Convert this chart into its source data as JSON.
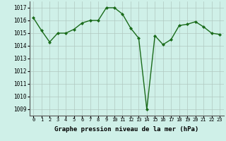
{
  "x": [
    0,
    1,
    2,
    3,
    4,
    5,
    6,
    7,
    8,
    9,
    10,
    11,
    12,
    13,
    14,
    15,
    16,
    17,
    18,
    19,
    20,
    21,
    22,
    23
  ],
  "y": [
    1016.2,
    1015.2,
    1014.3,
    1015.0,
    1015.0,
    1015.3,
    1015.8,
    1016.0,
    1016.0,
    1017.0,
    1017.0,
    1016.5,
    1015.4,
    1014.6,
    1009.0,
    1014.8,
    1014.1,
    1014.5,
    1015.6,
    1015.7,
    1015.9,
    1015.5,
    1015.0,
    1014.9
  ],
  "line_color": "#1a6b1a",
  "marker": "D",
  "marker_size": 2.0,
  "bg_color": "#cff0e8",
  "grid_color": "#b0c8c0",
  "xlabel": "Graphe pression niveau de la mer (hPa)",
  "xlabel_fontsize": 6.5,
  "xlabel_bold": true,
  "ylabel_ticks": [
    1009,
    1010,
    1011,
    1012,
    1013,
    1014,
    1015,
    1016,
    1017
  ],
  "xtick_labels": [
    "0",
    "1",
    "2",
    "3",
    "4",
    "5",
    "6",
    "7",
    "8",
    "9",
    "10",
    "11",
    "12",
    "13",
    "14",
    "15",
    "16",
    "17",
    "18",
    "19",
    "20",
    "21",
    "22",
    "23"
  ],
  "ylim": [
    1008.5,
    1017.5
  ],
  "xlim": [
    -0.5,
    23.5
  ],
  "ytick_fontsize": 5.5,
  "xtick_fontsize": 5.0,
  "line_width": 1.0
}
